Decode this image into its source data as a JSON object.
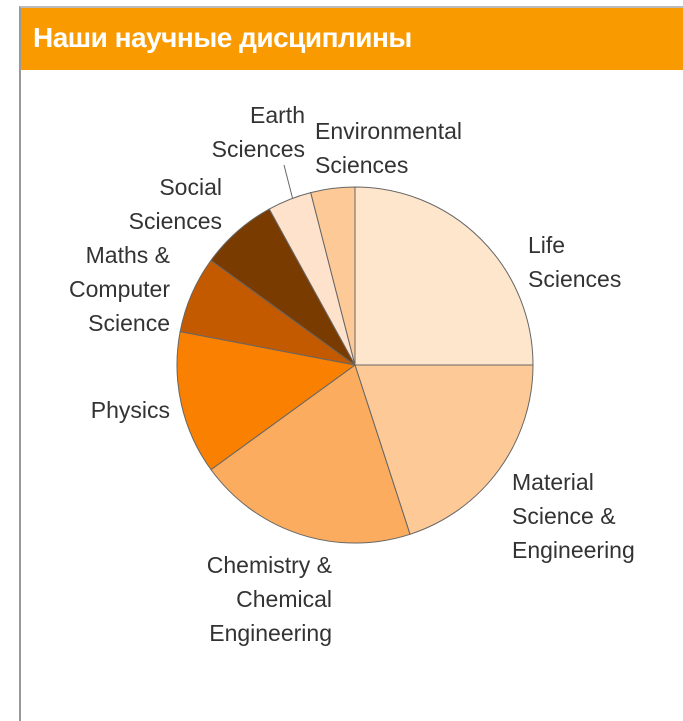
{
  "header": {
    "title": "Наши научные дисциплины"
  },
  "chart_data": {
    "type": "pie",
    "categories": [
      "Life Sciences",
      "Material Science & Engineering",
      "Chemistry & Chemical Engineering",
      "Physics",
      "Maths & Computer Science",
      "Social Sciences",
      "Earth Sciences",
      "Environmental Sciences"
    ],
    "values": [
      25,
      20,
      20,
      13,
      7,
      7,
      4,
      4
    ],
    "colors": [
      "#fee6cd",
      "#fdc996",
      "#fbac5e",
      "#f98000",
      "#c35a00",
      "#7a3b00",
      "#fee2cb",
      "#fdc996"
    ]
  }
}
